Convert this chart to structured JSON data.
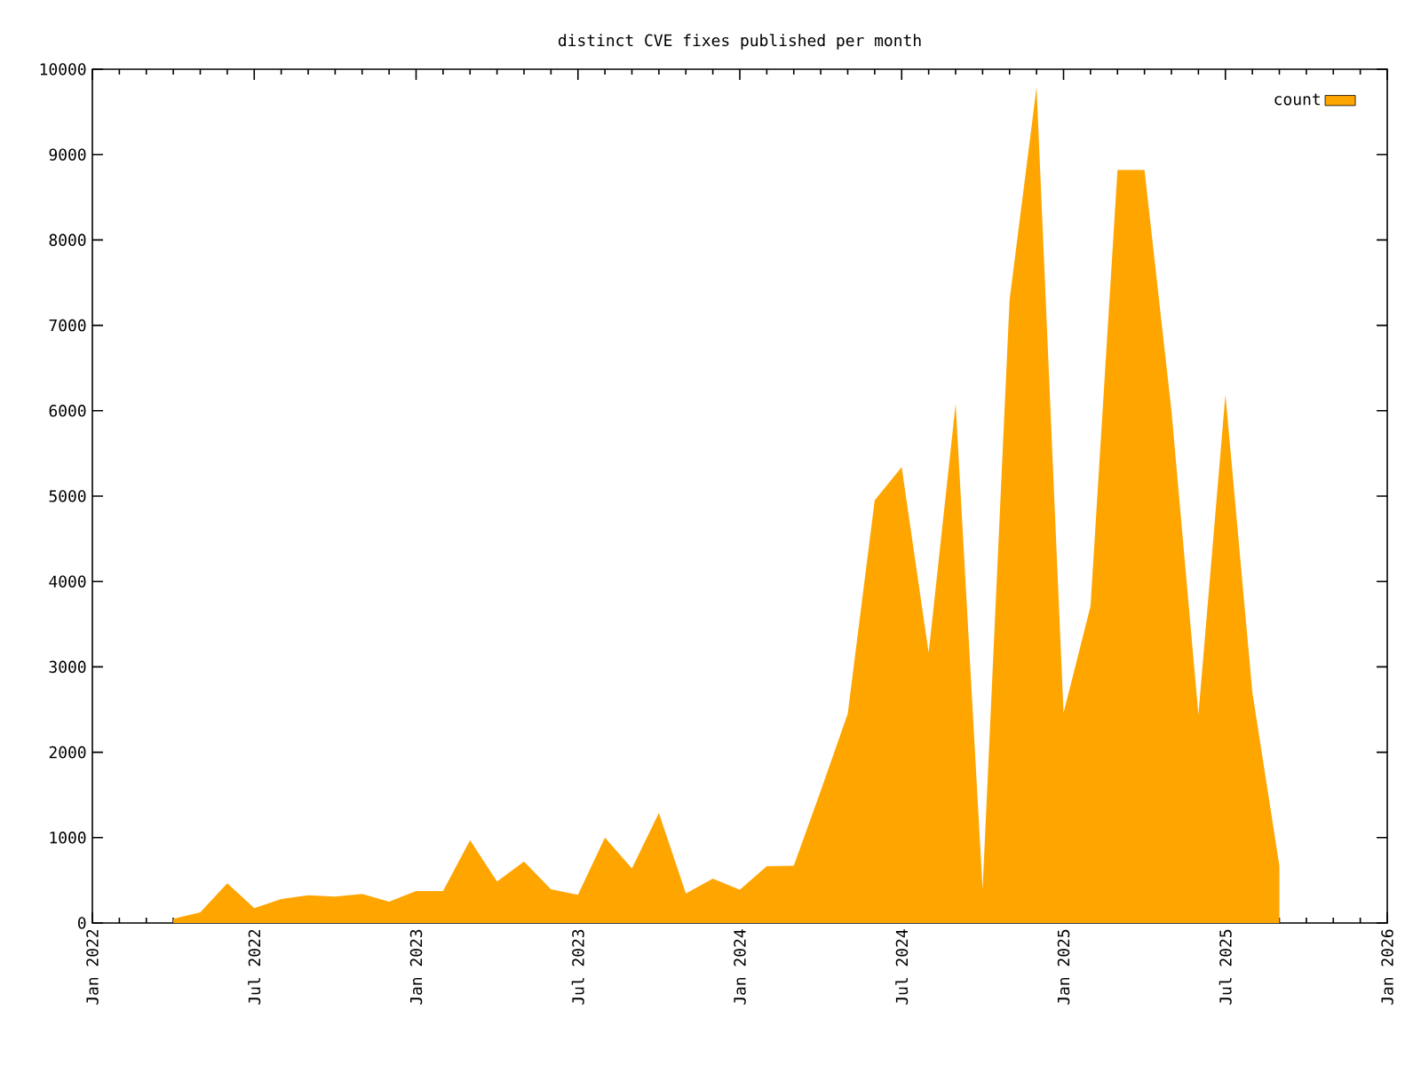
{
  "chart_data": {
    "type": "area",
    "title": "distinct CVE fixes published per month",
    "x": [
      "2022-04",
      "2022-05",
      "2022-06",
      "2022-07",
      "2022-08",
      "2022-09",
      "2022-10",
      "2022-11",
      "2022-12",
      "2023-01",
      "2023-02",
      "2023-03",
      "2023-04",
      "2023-05",
      "2023-06",
      "2023-07",
      "2023-08",
      "2023-09",
      "2023-10",
      "2023-11",
      "2023-12",
      "2024-01",
      "2024-02",
      "2024-03",
      "2024-04",
      "2024-05",
      "2024-06",
      "2024-07",
      "2024-08",
      "2024-09",
      "2024-10",
      "2024-11",
      "2024-12",
      "2025-01",
      "2025-02",
      "2025-03",
      "2025-04",
      "2025-05",
      "2025-06",
      "2025-07",
      "2025-08",
      "2025-09"
    ],
    "series": [
      {
        "name": "count",
        "color": "#ffa500",
        "values": [
          50,
          125,
          465,
          175,
          280,
          325,
          310,
          340,
          250,
          375,
          375,
          970,
          485,
          720,
          395,
          330,
          1000,
          640,
          1290,
          345,
          520,
          390,
          665,
          670,
          1550,
          2450,
          4950,
          5340,
          3165,
          6080,
          395,
          7300,
          9790,
          2460,
          3710,
          8820,
          8820,
          6000,
          2440,
          6190,
          2700,
          670
        ]
      }
    ],
    "xlim": [
      "2022-01",
      "2026-01"
    ],
    "xticks": [
      {
        "value": "2022-01",
        "label": "Jan 2022"
      },
      {
        "value": "2022-07",
        "label": "Jul 2022"
      },
      {
        "value": "2023-01",
        "label": "Jan 2023"
      },
      {
        "value": "2023-07",
        "label": "Jul 2023"
      },
      {
        "value": "2024-01",
        "label": "Jan 2024"
      },
      {
        "value": "2024-07",
        "label": "Jul 2024"
      },
      {
        "value": "2025-01",
        "label": "Jan 2025"
      },
      {
        "value": "2025-07",
        "label": "Jul 2025"
      },
      {
        "value": "2026-01",
        "label": "Jan 2026"
      }
    ],
    "ylim": [
      0,
      10000
    ],
    "yticks": [
      0,
      1000,
      2000,
      3000,
      4000,
      5000,
      6000,
      7000,
      8000,
      9000,
      10000
    ],
    "legend": "top right",
    "grid": false
  }
}
